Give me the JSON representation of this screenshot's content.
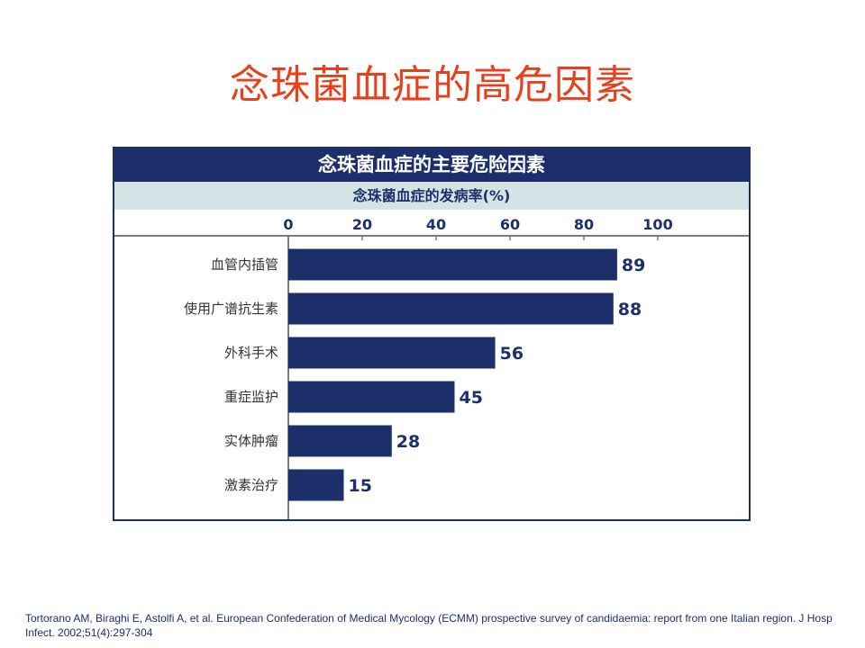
{
  "slide": {
    "title": "念珠菌血症的高危因素",
    "citation": "Tortorano AM, Biraghi E, Astolfi A, et al. European Confederation of Medical Mycology (ECMM) prospective survey of candidaemia: report from one Italian region. J Hosp Infect. 2002;51(4):297-304"
  },
  "colors": {
    "title": "#e8401c",
    "bar": "#1c2f6b",
    "header_bg": "#1c2f6b",
    "subheader_bg": "#d4e4e4"
  },
  "chart_data": {
    "type": "bar",
    "orientation": "horizontal",
    "title": "念珠菌血症的主要危险因素",
    "xlabel": "念珠菌血症的发病率(%)",
    "ylabel": "",
    "xlim": [
      0,
      100
    ],
    "x_ticks": [
      0,
      20,
      40,
      60,
      80,
      100
    ],
    "categories": [
      "血管内插管",
      "使用广谱抗生素",
      "外科手术",
      "重症监护",
      "实体肿瘤",
      "激素治疗"
    ],
    "values": [
      89,
      88,
      56,
      45,
      28,
      15
    ],
    "data_labels": [
      "89",
      "88",
      "56",
      "45",
      "28",
      "15"
    ],
    "grid": false,
    "legend": "none"
  }
}
